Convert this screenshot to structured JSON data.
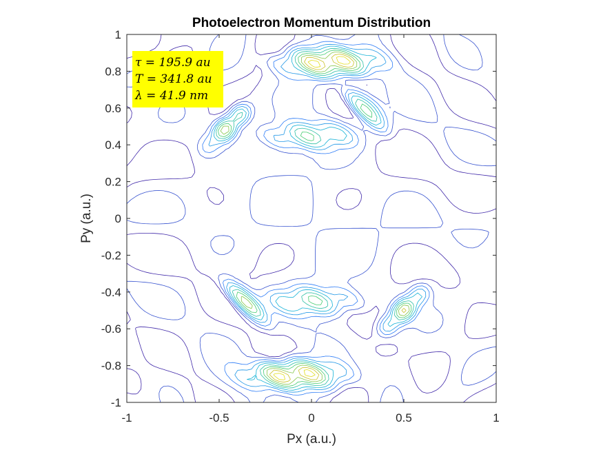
{
  "chart_data": {
    "type": "contour",
    "title": "Photoelectron Momentum Distribution",
    "xlabel": "Px (a.u.)",
    "ylabel": "Py (a.u.)",
    "xlim": [
      -1,
      1
    ],
    "ylim": [
      -1,
      1
    ],
    "xticks": [
      -1,
      -0.5,
      0,
      0.5,
      1
    ],
    "xtick_labels": [
      "-1",
      "-0.5",
      "0",
      "0.5",
      "1"
    ],
    "yticks": [
      -1,
      -0.8,
      -0.6,
      -0.4,
      -0.2,
      0,
      0.2,
      0.4,
      0.6,
      0.8,
      1
    ],
    "ytick_labels": [
      "-1",
      "-0.8",
      "-0.6",
      "-0.4",
      "-0.2",
      "0",
      "0.2",
      "0.4",
      "0.6",
      "0.8",
      "1"
    ],
    "grid": false,
    "colormap": "parula",
    "annotation": {
      "lines": [
        "τ = 195.9 au",
        "T = 341.8 au",
        "λ = 41.9 nm"
      ],
      "background": "#ffff00",
      "placement": "top-left"
    },
    "features": [
      {
        "name": "upper-band-peak",
        "x": 0.1,
        "y": 0.85,
        "level": 0.95
      },
      {
        "name": "lower-band-peak",
        "x": -0.1,
        "y": -0.85,
        "level": 0.95
      },
      {
        "name": "upper-left-lobe",
        "x": -0.45,
        "y": 0.5,
        "level": 0.6
      },
      {
        "name": "upper-right-lobe",
        "x": 0.3,
        "y": 0.6,
        "level": 0.6
      },
      {
        "name": "lower-left-lobe",
        "x": -0.35,
        "y": -0.45,
        "level": 0.6
      },
      {
        "name": "lower-right-lobe",
        "x": 0.5,
        "y": -0.5,
        "level": 0.6
      },
      {
        "name": "upper-center-blob",
        "x": 0.0,
        "y": 0.45,
        "level": 0.4
      },
      {
        "name": "lower-center-blob",
        "x": 0.0,
        "y": -0.45,
        "level": 0.4
      }
    ]
  }
}
